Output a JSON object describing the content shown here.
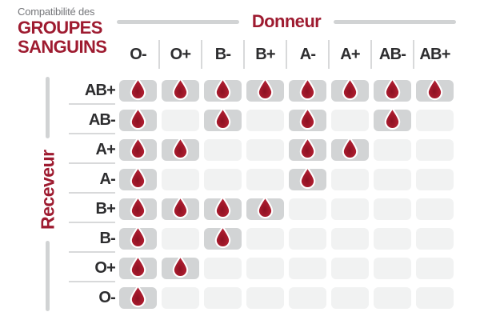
{
  "title": {
    "subtitle": "Compatibilité des",
    "line1": "GROUPES",
    "line2": "SANGUINS"
  },
  "headers": {
    "donor": "Donneur",
    "receiver": "Receveur"
  },
  "icons": {
    "compatible_marker": "blood-drop-icon"
  },
  "colors": {
    "accent_red": "#9e1b30",
    "drop_fill": "#ae1c2e",
    "drop_shade": "#8c1122",
    "active_cell": "#d2d4d5",
    "inactive_cell": "#f1f2f2",
    "bar_gray": "#d1d3d4",
    "subtitle_gray": "#75767a",
    "label_dark": "#2d2d2f"
  },
  "chart_data": {
    "type": "heatmap",
    "title": "Compatibilité des groupes sanguins",
    "columns_axis_label": "Donneur",
    "rows_axis_label": "Receveur",
    "columns": [
      "O-",
      "O+",
      "B-",
      "B+",
      "A-",
      "A+",
      "AB-",
      "AB+"
    ],
    "rows": [
      "AB+",
      "AB-",
      "A+",
      "A-",
      "B+",
      "B-",
      "O+",
      "O-"
    ],
    "values": [
      [
        1,
        1,
        1,
        1,
        1,
        1,
        1,
        1
      ],
      [
        1,
        0,
        1,
        0,
        1,
        0,
        1,
        0
      ],
      [
        1,
        1,
        0,
        0,
        1,
        1,
        0,
        0
      ],
      [
        1,
        0,
        0,
        0,
        1,
        0,
        0,
        0
      ],
      [
        1,
        1,
        1,
        1,
        0,
        0,
        0,
        0
      ],
      [
        1,
        0,
        1,
        0,
        0,
        0,
        0,
        0
      ],
      [
        1,
        1,
        0,
        0,
        0,
        0,
        0,
        0
      ],
      [
        1,
        0,
        0,
        0,
        0,
        0,
        0,
        0
      ]
    ],
    "value_meaning": {
      "1": "compatible — goutte de sang sur case grise",
      "0": "incompatible — case claire vide"
    },
    "legend_position": "none",
    "grid": "off"
  }
}
